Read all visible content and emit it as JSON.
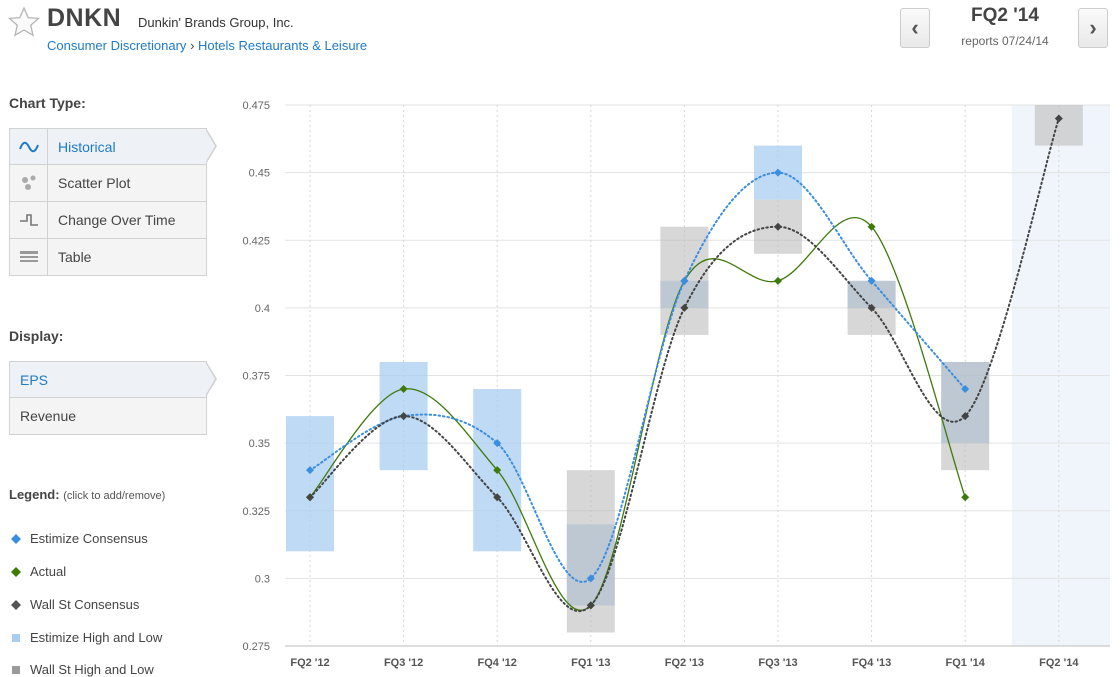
{
  "header": {
    "ticker": "DNKN",
    "company": "Dunkin' Brands Group, Inc.",
    "sector": "Consumer Discretionary",
    "breadcrumb_sep": "›",
    "industry": "Hotels Restaurants & Leisure",
    "quarter": "FQ2 '14",
    "reports": "reports 07/24/14",
    "prev_label": "‹",
    "next_label": "›"
  },
  "sidebar": {
    "chart_type_label": "Chart Type:",
    "chart_types": [
      {
        "label": "Historical",
        "icon": "wave-icon",
        "active": true
      },
      {
        "label": "Scatter Plot",
        "icon": "scatter-icon",
        "active": false
      },
      {
        "label": "Change Over Time",
        "icon": "step-icon",
        "active": false
      },
      {
        "label": "Table",
        "icon": "table-icon",
        "active": false
      }
    ],
    "display_label": "Display:",
    "display_options": [
      {
        "label": "EPS",
        "active": true
      },
      {
        "label": "Revenue",
        "active": false
      }
    ],
    "legend_label": "Legend:",
    "legend_hint": "(click to add/remove)",
    "legend": [
      {
        "label": "Estimize Consensus",
        "color": "#3a8ee0",
        "marker": "diamond"
      },
      {
        "label": "Actual",
        "color": "#3e7a0a",
        "marker": "diamond"
      },
      {
        "label": "Wall St Consensus",
        "color": "#555555",
        "marker": "diamond"
      },
      {
        "label": "Estimize High and Low",
        "color": "#a9cdf0",
        "marker": "square"
      },
      {
        "label": "Wall St High and Low",
        "color": "#9a9a9a",
        "marker": "square"
      }
    ]
  },
  "chart_data": {
    "type": "line",
    "categories": [
      "FQ2 '12",
      "FQ3 '12",
      "FQ4 '12",
      "FQ1 '13",
      "FQ2 '13",
      "FQ3 '13",
      "FQ4 '13",
      "FQ1 '14",
      "FQ2 '14"
    ],
    "ylim": [
      0.275,
      0.475
    ],
    "yticks": [
      "0.275",
      "0.3",
      "0.325",
      "0.35",
      "0.375",
      "0.4",
      "0.425",
      "0.45",
      "0.475"
    ],
    "grid": true,
    "highlight_category": "FQ2 '14",
    "series": [
      {
        "name": "Estimize Consensus",
        "color": "#3a8ee0",
        "style": "dotted",
        "values": [
          0.34,
          0.36,
          0.35,
          0.3,
          0.41,
          0.45,
          0.41,
          0.37,
          null
        ]
      },
      {
        "name": "Actual",
        "color": "#3e7a0a",
        "style": "solid",
        "values": [
          0.33,
          0.37,
          0.34,
          0.29,
          0.41,
          0.41,
          0.43,
          0.33,
          null
        ]
      },
      {
        "name": "Wall St Consensus",
        "color": "#444444",
        "style": "dotted",
        "values": [
          0.33,
          0.36,
          0.33,
          0.29,
          0.4,
          0.43,
          0.4,
          0.36,
          0.47
        ]
      }
    ],
    "ranges": [
      {
        "name": "Estimize High and Low",
        "color": "#a9cdf0",
        "values": [
          [
            0.31,
            0.36
          ],
          [
            0.34,
            0.38
          ],
          [
            0.31,
            0.37
          ],
          [
            0.29,
            0.32
          ],
          [
            0.4,
            0.41
          ],
          [
            0.44,
            0.46
          ],
          [
            0.4,
            0.41
          ],
          [
            0.35,
            0.38
          ],
          null
        ]
      },
      {
        "name": "Wall St High and Low",
        "color": "#bdbdbd",
        "values": [
          null,
          null,
          null,
          [
            0.28,
            0.34
          ],
          [
            0.39,
            0.43
          ],
          [
            0.42,
            0.44
          ],
          [
            0.39,
            0.41
          ],
          [
            0.34,
            0.38
          ],
          [
            0.46,
            0.475
          ]
        ]
      }
    ]
  }
}
